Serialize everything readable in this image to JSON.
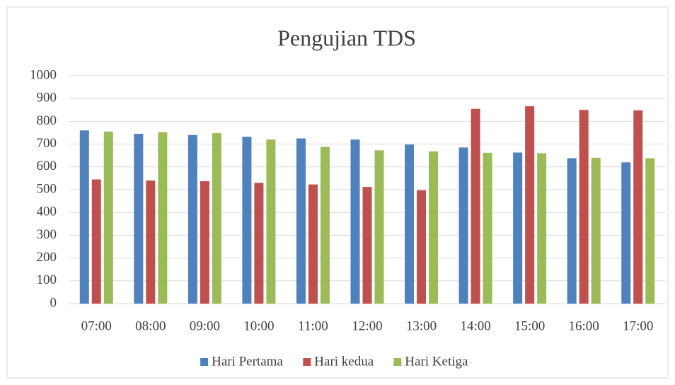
{
  "chart_data": {
    "type": "bar",
    "title": "Pengujian TDS",
    "categories": [
      "07:00",
      "08:00",
      "09:00",
      "10:00",
      "11:00",
      "12:00",
      "13:00",
      "14:00",
      "15:00",
      "16:00",
      "17:00"
    ],
    "series": [
      {
        "name": "Hari Pertama",
        "color": "#4f81bd",
        "values": [
          760,
          745,
          740,
          732,
          725,
          720,
          698,
          685,
          663,
          638,
          620
        ]
      },
      {
        "name": "Hari kedua",
        "color": "#c0504d",
        "values": [
          545,
          540,
          537,
          530,
          523,
          512,
          497,
          855,
          866,
          850,
          848
        ]
      },
      {
        "name": "Hari Ketiga",
        "color": "#9bbb59",
        "values": [
          755,
          752,
          748,
          720,
          688,
          673,
          668,
          662,
          660,
          640,
          638
        ]
      }
    ],
    "ylim": [
      0,
      1000
    ],
    "yticks": [
      0,
      100,
      200,
      300,
      400,
      500,
      600,
      700,
      800,
      900,
      1000
    ],
    "grid": true,
    "legend": "bottom"
  }
}
